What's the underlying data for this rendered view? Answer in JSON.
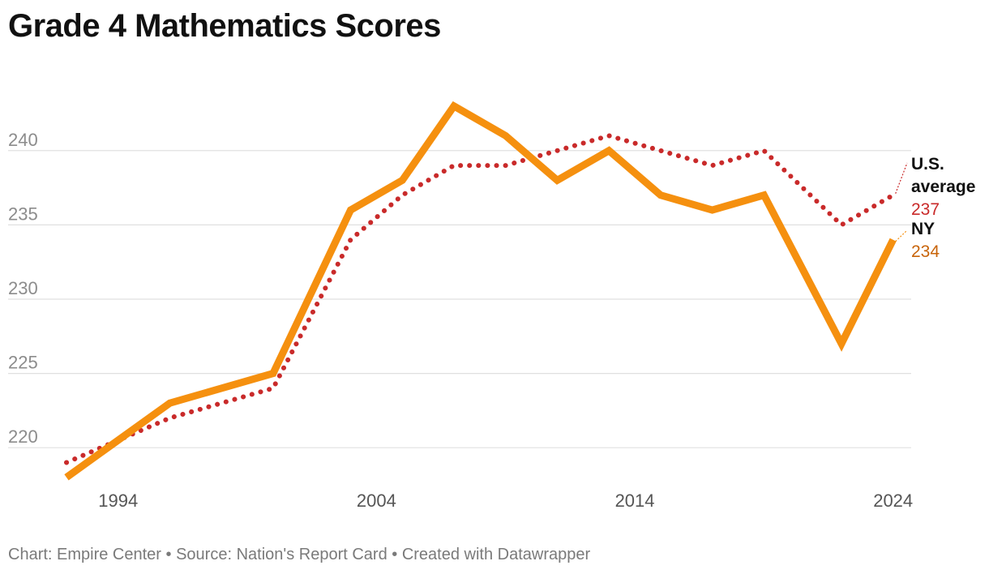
{
  "title": "Grade 4 Mathematics Scores",
  "footer": {
    "chart": "Chart: Empire Center",
    "source": "Source: Nation's Report Card",
    "created": "Created with Datawrapper",
    "separator": " • "
  },
  "colors": {
    "us_average": "#c92a2a",
    "ny": "#f5900f",
    "ny_label": "#c8640a",
    "gridline": "#e0e0e0"
  },
  "chart_data": {
    "type": "line",
    "title": "Grade 4 Mathematics Scores",
    "xlabel": "",
    "ylabel": "",
    "x_ticks": [
      1994,
      2004,
      2014,
      2024
    ],
    "y_ticks": [
      220,
      225,
      230,
      235,
      240
    ],
    "xlim": [
      1992,
      2024.7
    ],
    "ylim": [
      217.5,
      245.5
    ],
    "grid": true,
    "series": [
      {
        "name": "U.S. average",
        "label_lines": [
          "U.S.",
          "average"
        ],
        "end_value": "237",
        "style": "dotted",
        "x": [
          1992,
          1996,
          2000,
          2003,
          2005,
          2007,
          2009,
          2011,
          2013,
          2015,
          2017,
          2019,
          2022,
          2024
        ],
        "values": [
          219,
          222,
          224,
          234,
          237,
          239,
          239,
          240,
          241,
          240,
          239,
          240,
          235,
          237
        ]
      },
      {
        "name": "NY",
        "label_lines": [
          "NY"
        ],
        "end_value": "234",
        "style": "solid",
        "x": [
          1992,
          1996,
          2000,
          2003,
          2005,
          2007,
          2009,
          2011,
          2013,
          2015,
          2017,
          2019,
          2022,
          2024
        ],
        "values": [
          218,
          223,
          225,
          236,
          238,
          243,
          241,
          238,
          240,
          237,
          236,
          237,
          227,
          234
        ]
      }
    ]
  }
}
